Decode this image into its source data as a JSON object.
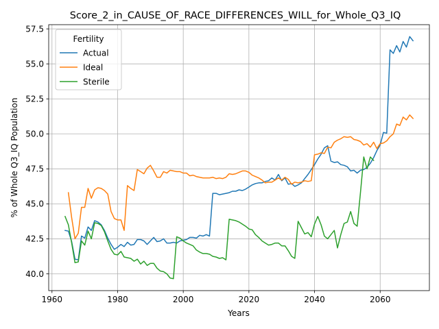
{
  "chart_data": {
    "type": "line",
    "title": "Score_2_in_CAUSE_OF_RACE_DIFFERENCES_WILL_for_Whole_Q3_IQ",
    "xlabel": "Years",
    "ylabel": "% of Whole Q3_IQ Population",
    "xlim": [
      1959,
      2075
    ],
    "ylim": [
      38.8,
      57.8
    ],
    "xticks": [
      1960,
      1980,
      2000,
      2020,
      2040,
      2060
    ],
    "yticks": [
      40.0,
      42.5,
      45.0,
      47.5,
      50.0,
      52.5,
      55.0,
      57.5
    ],
    "xtick_labels": [
      "1960",
      "1980",
      "2000",
      "2020",
      "2040",
      "2060"
    ],
    "ytick_labels": [
      "40.0",
      "42.5",
      "45.0",
      "47.5",
      "50.0",
      "52.5",
      "55.0",
      "57.5"
    ],
    "grid": true,
    "legend": {
      "title": "Fertility",
      "placement": "upper-left"
    },
    "series": [
      {
        "name": "Actual",
        "color": "#1f77b4",
        "x": [
          1964,
          1965,
          1966,
          1967,
          1968,
          1969,
          1970,
          1971,
          1972,
          1973,
          1974,
          1975,
          1976,
          1977,
          1978,
          1979,
          1980,
          1981,
          1982,
          1983,
          1984,
          1985,
          1986,
          1987,
          1988,
          1989,
          1990,
          1991,
          1992,
          1993,
          1994,
          1995,
          1996,
          1997,
          1998,
          1999,
          2000,
          2001,
          2002,
          2003,
          2004,
          2005,
          2006,
          2007,
          2008,
          2009,
          2010,
          2011,
          2012,
          2013,
          2014,
          2015,
          2016,
          2017,
          2018,
          2019,
          2020,
          2021,
          2022,
          2023,
          2024,
          2025,
          2026,
          2027,
          2028,
          2029,
          2030,
          2031,
          2032,
          2033,
          2034,
          2035,
          2036,
          2037,
          2038,
          2039,
          2040,
          2041,
          2042,
          2043,
          2044,
          2045,
          2046,
          2047,
          2048,
          2049,
          2050,
          2051,
          2052,
          2053,
          2054,
          2055,
          2056,
          2057,
          2058,
          2059,
          2060,
          2061,
          2062,
          2063,
          2064,
          2065,
          2066,
          2067,
          2068,
          2069,
          2070
        ],
        "values": [
          43.1,
          43.05,
          42.3,
          41.05,
          41.0,
          42.7,
          42.55,
          43.35,
          43.1,
          43.8,
          43.7,
          43.5,
          43.1,
          42.55,
          42.1,
          41.75,
          41.9,
          42.1,
          41.95,
          42.25,
          42.05,
          42.1,
          42.45,
          42.45,
          42.35,
          42.1,
          42.35,
          42.6,
          42.3,
          42.35,
          42.5,
          42.2,
          42.2,
          42.25,
          42.2,
          42.35,
          42.4,
          42.45,
          42.6,
          42.6,
          42.55,
          42.75,
          42.7,
          42.8,
          42.7,
          45.75,
          45.75,
          45.65,
          45.7,
          45.75,
          45.8,
          45.9,
          45.9,
          46.0,
          45.95,
          46.05,
          46.2,
          46.35,
          46.45,
          46.5,
          46.5,
          46.6,
          46.65,
          46.85,
          46.7,
          47.1,
          46.65,
          46.85,
          46.4,
          46.45,
          46.25,
          46.35,
          46.5,
          46.8,
          47.1,
          47.45,
          47.8,
          48.2,
          48.55,
          49.0,
          49.15,
          48.05,
          47.95,
          48.0,
          47.8,
          47.75,
          47.65,
          47.35,
          47.4,
          47.2,
          47.4,
          47.45,
          47.6,
          47.9,
          48.3,
          48.8,
          49.2,
          50.1,
          50.05,
          56.0,
          55.75,
          56.3,
          55.85,
          56.6,
          56.2,
          56.95,
          56.65
        ]
      },
      {
        "name": "Ideal",
        "color": "#ff7f0e",
        "x": [
          1965,
          1966,
          1967,
          1968,
          1969,
          1970,
          1971,
          1972,
          1973,
          1974,
          1975,
          1976,
          1977,
          1978,
          1979,
          1980,
          1981,
          1982,
          1983,
          1984,
          1985,
          1986,
          1987,
          1988,
          1989,
          1990,
          1991,
          1992,
          1993,
          1994,
          1995,
          1996,
          1997,
          1998,
          1999,
          2000,
          2001,
          2002,
          2003,
          2004,
          2005,
          2006,
          2007,
          2008,
          2009,
          2010,
          2011,
          2012,
          2013,
          2014,
          2015,
          2016,
          2017,
          2018,
          2019,
          2020,
          2021,
          2022,
          2023,
          2024,
          2025,
          2026,
          2027,
          2028,
          2029,
          2030,
          2031,
          2032,
          2033,
          2034,
          2035,
          2036,
          2037,
          2038,
          2039,
          2040,
          2041,
          2042,
          2043,
          2044,
          2045,
          2046,
          2047,
          2048,
          2049,
          2050,
          2051,
          2052,
          2053,
          2054,
          2055,
          2056,
          2057,
          2058,
          2059,
          2060,
          2061,
          2062,
          2063,
          2064,
          2065,
          2066,
          2067,
          2068,
          2069,
          2070
        ],
        "values": [
          45.8,
          44.0,
          42.5,
          42.9,
          44.75,
          44.75,
          46.1,
          45.4,
          46.0,
          46.15,
          46.1,
          45.95,
          45.7,
          44.45,
          43.95,
          43.85,
          43.85,
          43.1,
          46.3,
          46.1,
          45.95,
          47.45,
          47.3,
          47.15,
          47.55,
          47.75,
          47.35,
          46.9,
          46.9,
          47.3,
          47.2,
          47.4,
          47.35,
          47.3,
          47.3,
          47.2,
          47.2,
          47.0,
          47.05,
          46.95,
          46.9,
          46.85,
          46.85,
          46.85,
          46.9,
          46.8,
          46.85,
          46.8,
          46.9,
          47.15,
          47.1,
          47.15,
          47.25,
          47.35,
          47.35,
          47.25,
          47.05,
          46.95,
          46.85,
          46.7,
          46.5,
          46.55,
          46.55,
          46.7,
          46.85,
          46.7,
          46.9,
          46.75,
          46.4,
          46.55,
          46.5,
          46.55,
          46.65,
          46.6,
          46.65,
          48.5,
          48.55,
          48.65,
          48.6,
          49.05,
          49.0,
          49.4,
          49.55,
          49.65,
          49.8,
          49.75,
          49.8,
          49.6,
          49.55,
          49.45,
          49.2,
          49.3,
          49.05,
          49.4,
          48.95,
          49.3,
          49.35,
          49.5,
          49.8,
          50.0,
          50.7,
          50.6,
          51.2,
          51.0,
          51.35,
          51.1
        ]
      },
      {
        "name": "Sterile",
        "color": "#2ca02c",
        "x": [
          1964,
          1965,
          1966,
          1967,
          1968,
          1969,
          1970,
          1971,
          1972,
          1973,
          1974,
          1975,
          1976,
          1977,
          1978,
          1979,
          1980,
          1981,
          1982,
          1983,
          1984,
          1985,
          1986,
          1987,
          1988,
          1989,
          1990,
          1991,
          1992,
          1993,
          1994,
          1995,
          1996,
          1997,
          1998,
          1999,
          2000,
          2001,
          2002,
          2003,
          2004,
          2005,
          2006,
          2007,
          2008,
          2009,
          2010,
          2011,
          2012,
          2013,
          2014,
          2015,
          2016,
          2017,
          2018,
          2019,
          2020,
          2021,
          2022,
          2023,
          2024,
          2025,
          2026,
          2027,
          2028,
          2029,
          2030,
          2031,
          2032,
          2033,
          2034,
          2035,
          2036,
          2037,
          2038,
          2039,
          2040,
          2041,
          2042,
          2043,
          2044,
          2045,
          2046,
          2047,
          2048,
          2049,
          2050,
          2051,
          2052,
          2053,
          2054,
          2055,
          2056,
          2057,
          2058
        ],
        "values": [
          44.1,
          43.5,
          42.2,
          40.8,
          40.85,
          42.35,
          42.05,
          43.05,
          42.5,
          43.65,
          43.6,
          43.45,
          43.0,
          42.35,
          41.75,
          41.4,
          41.35,
          41.6,
          41.2,
          41.15,
          41.1,
          40.9,
          41.05,
          40.7,
          40.9,
          40.6,
          40.75,
          40.75,
          40.4,
          40.2,
          40.15,
          40.0,
          39.7,
          39.65,
          42.65,
          42.55,
          42.35,
          42.2,
          42.1,
          42.0,
          41.7,
          41.55,
          41.45,
          41.45,
          41.4,
          41.25,
          41.2,
          41.1,
          41.15,
          41.0,
          43.9,
          43.85,
          43.8,
          43.7,
          43.55,
          43.4,
          43.2,
          43.15,
          42.8,
          42.6,
          42.35,
          42.2,
          42.05,
          42.1,
          42.2,
          42.2,
          42.0,
          42.0,
          41.65,
          41.25,
          41.1,
          43.75,
          43.3,
          42.85,
          42.95,
          42.65,
          43.55,
          44.1,
          43.5,
          42.7,
          42.5,
          42.8,
          43.1,
          41.85,
          42.8,
          43.6,
          43.7,
          44.45,
          43.6,
          43.4,
          45.8,
          48.35,
          47.5,
          48.35,
          48.1
        ]
      }
    ]
  }
}
